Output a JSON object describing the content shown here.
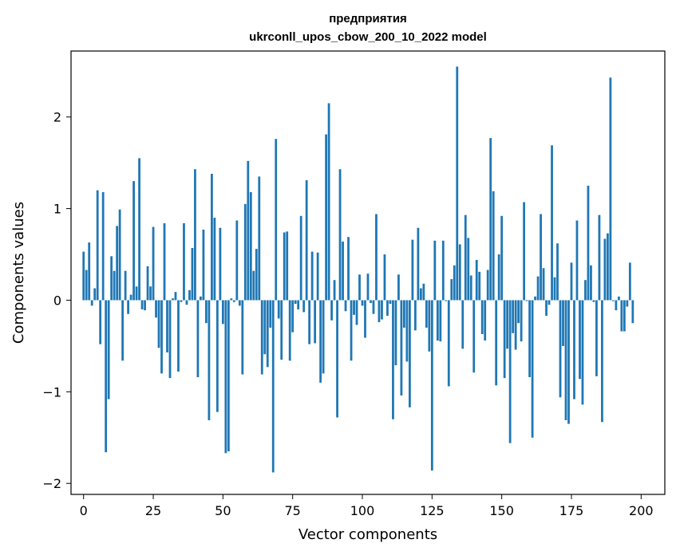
{
  "chart_data": {
    "type": "bar",
    "title_line1": "предприятия",
    "title_line2": "ukrconll_upos_cbow_200_10_2022 model",
    "xlabel": "Vector components",
    "ylabel": "Components values",
    "xlim": [
      -4.5,
      208.5
    ],
    "ylim": [
      -2.12,
      2.72
    ],
    "x_ticks": [
      0,
      25,
      50,
      75,
      100,
      125,
      150,
      175,
      200
    ],
    "y_ticks": [
      -2,
      -1,
      0,
      1,
      2
    ],
    "x_tick_labels": [
      "0",
      "25",
      "50",
      "75",
      "100",
      "125",
      "150",
      "175",
      "200"
    ],
    "y_tick_labels": [
      "−2",
      "−1",
      "0",
      "1",
      "2"
    ],
    "grid": false,
    "legend": "none",
    "bar_color": "#1f77b4",
    "values": [
      0.53,
      0.33,
      0.63,
      -0.06,
      0.13,
      1.2,
      -0.48,
      1.18,
      -1.66,
      -1.08,
      0.48,
      0.32,
      0.81,
      0.99,
      -0.66,
      0.32,
      -0.15,
      0.06,
      1.3,
      0.15,
      1.55,
      -0.1,
      -0.11,
      0.37,
      0.15,
      0.8,
      -0.19,
      -0.52,
      -0.8,
      0.84,
      -0.57,
      -0.85,
      0.02,
      0.09,
      -0.78,
      -0.02,
      0.84,
      -0.05,
      0.11,
      0.57,
      1.43,
      -0.84,
      0.04,
      0.77,
      -0.25,
      -1.31,
      1.38,
      0.9,
      -1.22,
      0.79,
      -0.26,
      -1.67,
      -1.65,
      0.02,
      -0.02,
      0.87,
      -0.06,
      -0.81,
      1.05,
      1.52,
      1.18,
      0.32,
      0.56,
      1.35,
      -0.81,
      -0.59,
      -0.73,
      -0.3,
      -1.88,
      1.76,
      -0.2,
      -0.65,
      0.74,
      0.75,
      -0.66,
      -0.35,
      -0.04,
      -0.1,
      0.92,
      -0.13,
      1.31,
      -0.48,
      0.53,
      -0.47,
      0.52,
      -0.9,
      -0.8,
      1.81,
      2.15,
      -0.22,
      0.22,
      -1.28,
      1.43,
      0.64,
      -0.12,
      0.69,
      -0.66,
      -0.16,
      -0.27,
      0.28,
      -0.06,
      -0.41,
      0.29,
      -0.03,
      -0.15,
      0.94,
      -0.24,
      -0.21,
      0.5,
      -0.17,
      -0.04,
      -1.3,
      -0.71,
      0.28,
      -1.04,
      -0.3,
      -0.67,
      -1.17,
      0.66,
      -0.33,
      0.79,
      0.13,
      0.18,
      -0.3,
      -0.56,
      -1.86,
      0.65,
      -0.44,
      -0.45,
      0.65,
      -0.01,
      -0.94,
      0.23,
      0.38,
      2.55,
      0.61,
      -0.53,
      0.93,
      0.68,
      0.27,
      -0.79,
      0.44,
      0.31,
      -0.37,
      -0.44,
      0.33,
      1.77,
      1.19,
      -0.93,
      0.5,
      0.92,
      -0.85,
      -0.53,
      -1.56,
      -0.36,
      -0.54,
      -0.25,
      -0.45,
      1.07,
      -0.01,
      -0.84,
      -1.5,
      0.04,
      0.26,
      0.94,
      0.35,
      -0.17,
      -0.05,
      1.69,
      0.25,
      0.62,
      -1.06,
      -0.5,
      -1.31,
      -1.35,
      0.41,
      -1.08,
      0.87,
      -0.86,
      -1.14,
      0.22,
      1.25,
      0.38,
      -0.02,
      -0.83,
      0.93,
      -1.33,
      0.67,
      0.73,
      2.43,
      -0.01,
      -0.11,
      0.04,
      -0.34,
      -0.34,
      -0.07,
      0.41,
      -0.25
    ]
  }
}
